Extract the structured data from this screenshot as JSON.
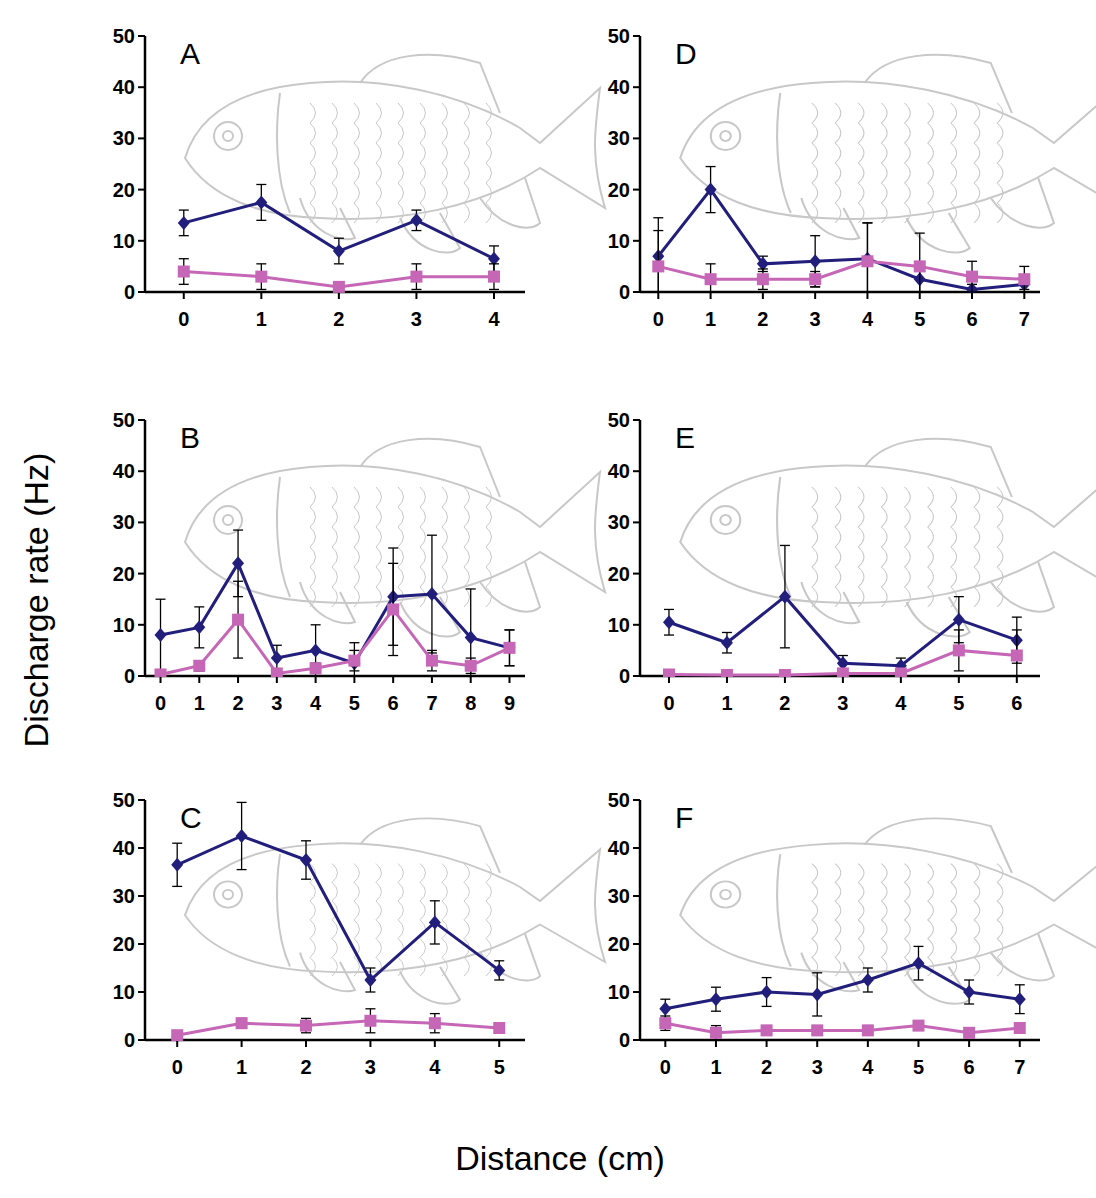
{
  "ylabel": "Discharge rate (Hz)",
  "xlabel": "Distance (cm)",
  "chart_data": [
    {
      "type": "line",
      "title": "A",
      "x": [
        0,
        1,
        2,
        3,
        4
      ],
      "xlim": [
        -0.5,
        4.4
      ],
      "xticks": [
        0,
        1,
        2,
        3,
        4
      ],
      "ylim": [
        0,
        50
      ],
      "yticks": [
        0,
        10,
        20,
        30,
        40,
        50
      ],
      "series": [
        {
          "color": "#221e7c",
          "marker": "diamond",
          "values": [
            13.5,
            17.5,
            8,
            14,
            6.5
          ],
          "errors": [
            2.5,
            3.5,
            2.5,
            2,
            2.5
          ]
        },
        {
          "color": "#c566b6",
          "marker": "square",
          "values": [
            4,
            3,
            1,
            3,
            3
          ],
          "errors": [
            2.5,
            2.5,
            0.8,
            2.5,
            2.5
          ]
        }
      ]
    },
    {
      "type": "line",
      "title": "B",
      "x": [
        0,
        1,
        2,
        3,
        4,
        5,
        6,
        7,
        8,
        9
      ],
      "xlim": [
        -0.4,
        9.4
      ],
      "xticks": [
        0,
        1,
        2,
        3,
        4,
        5,
        6,
        7,
        8,
        9
      ],
      "ylim": [
        0,
        50
      ],
      "yticks": [
        0,
        10,
        20,
        30,
        40,
        50
      ],
      "series": [
        {
          "color": "#221e7c",
          "marker": "diamond",
          "values": [
            8,
            9.5,
            22,
            3.5,
            5,
            2.5,
            15.5,
            16,
            7.5,
            5.5
          ],
          "errors": [
            7,
            4,
            6.5,
            2.5,
            5,
            4,
            9.5,
            11.5,
            9.5,
            3.5
          ]
        },
        {
          "color": "#c566b6",
          "marker": "square",
          "values": [
            0.3,
            2,
            11,
            0.5,
            1.5,
            3,
            13,
            3,
            2,
            5.5
          ],
          "errors": [
            0.3,
            1,
            7.5,
            0.5,
            1,
            2,
            9,
            2,
            1.5,
            3.5
          ]
        }
      ]
    },
    {
      "type": "line",
      "title": "C",
      "x": [
        0,
        1,
        2,
        3,
        4,
        5
      ],
      "xlim": [
        -0.5,
        5.4
      ],
      "xticks": [
        0,
        1,
        2,
        3,
        4,
        5
      ],
      "ylim": [
        0,
        50
      ],
      "yticks": [
        0,
        10,
        20,
        30,
        40,
        50
      ],
      "series": [
        {
          "color": "#221e7c",
          "marker": "diamond",
          "values": [
            36.5,
            42.5,
            37.5,
            12.5,
            24.5,
            14.5
          ],
          "errors": [
            4.5,
            7,
            4,
            2.5,
            4.5,
            2
          ]
        },
        {
          "color": "#c566b6",
          "marker": "square",
          "values": [
            1,
            3.5,
            3,
            4,
            3.5,
            2.5
          ],
          "errors": [
            0.5,
            1,
            1.5,
            2.5,
            2,
            1
          ]
        }
      ]
    },
    {
      "type": "line",
      "title": "D",
      "x": [
        0,
        1,
        2,
        3,
        4,
        5,
        6,
        7
      ],
      "xlim": [
        -0.35,
        7.3
      ],
      "xticks": [
        0,
        1,
        2,
        3,
        4,
        5,
        6,
        7
      ],
      "ylim": [
        0,
        50
      ],
      "yticks": [
        0,
        10,
        20,
        30,
        40,
        50
      ],
      "series": [
        {
          "color": "#221e7c",
          "marker": "diamond",
          "values": [
            7,
            20,
            5.5,
            6,
            6.5,
            2.5,
            0.5,
            1.5
          ],
          "errors": [
            7.5,
            4.5,
            1.5,
            5,
            7,
            3,
            1,
            1
          ]
        },
        {
          "color": "#c566b6",
          "marker": "square",
          "values": [
            5,
            2.5,
            2.5,
            2.5,
            6,
            5,
            3,
            2.5
          ],
          "errors": [
            7,
            3,
            2,
            1.5,
            7.5,
            6.5,
            3,
            2.5
          ]
        }
      ]
    },
    {
      "type": "line",
      "title": "E",
      "x": [
        0,
        1,
        2,
        3,
        4,
        5,
        6
      ],
      "xlim": [
        -0.5,
        6.4
      ],
      "xticks": [
        0,
        1,
        2,
        3,
        4,
        5,
        6
      ],
      "ylim": [
        0,
        50
      ],
      "yticks": [
        0,
        10,
        20,
        30,
        40,
        50
      ],
      "series": [
        {
          "color": "#221e7c",
          "marker": "diamond",
          "values": [
            10.5,
            6.5,
            15.5,
            2.5,
            2,
            11,
            7
          ],
          "errors": [
            2.5,
            2,
            10,
            1.5,
            1.5,
            4.5,
            4.5
          ]
        },
        {
          "color": "#c566b6",
          "marker": "square",
          "values": [
            0.3,
            0.2,
            0.2,
            0.5,
            0.5,
            5,
            4
          ],
          "errors": [
            0.2,
            0.2,
            0.2,
            0.3,
            0.3,
            4,
            5
          ]
        }
      ]
    },
    {
      "type": "line",
      "title": "F",
      "x": [
        0,
        1,
        2,
        3,
        4,
        5,
        6,
        7
      ],
      "xlim": [
        -0.5,
        7.4
      ],
      "xticks": [
        0,
        1,
        2,
        3,
        4,
        5,
        6,
        7
      ],
      "ylim": [
        0,
        50
      ],
      "yticks": [
        0,
        10,
        20,
        30,
        40,
        50
      ],
      "series": [
        {
          "color": "#221e7c",
          "marker": "diamond",
          "values": [
            6.5,
            8.5,
            10,
            9.5,
            12.5,
            16,
            10,
            8.5
          ],
          "errors": [
            2,
            2.5,
            3,
            4.5,
            2.5,
            3.5,
            2.5,
            3
          ]
        },
        {
          "color": "#c566b6",
          "marker": "square",
          "values": [
            3.5,
            1.5,
            2,
            2,
            2,
            3,
            1.5,
            2.5
          ],
          "errors": [
            1.5,
            1.5,
            1,
            1,
            1,
            0.8,
            1,
            0.5
          ]
        }
      ]
    }
  ]
}
